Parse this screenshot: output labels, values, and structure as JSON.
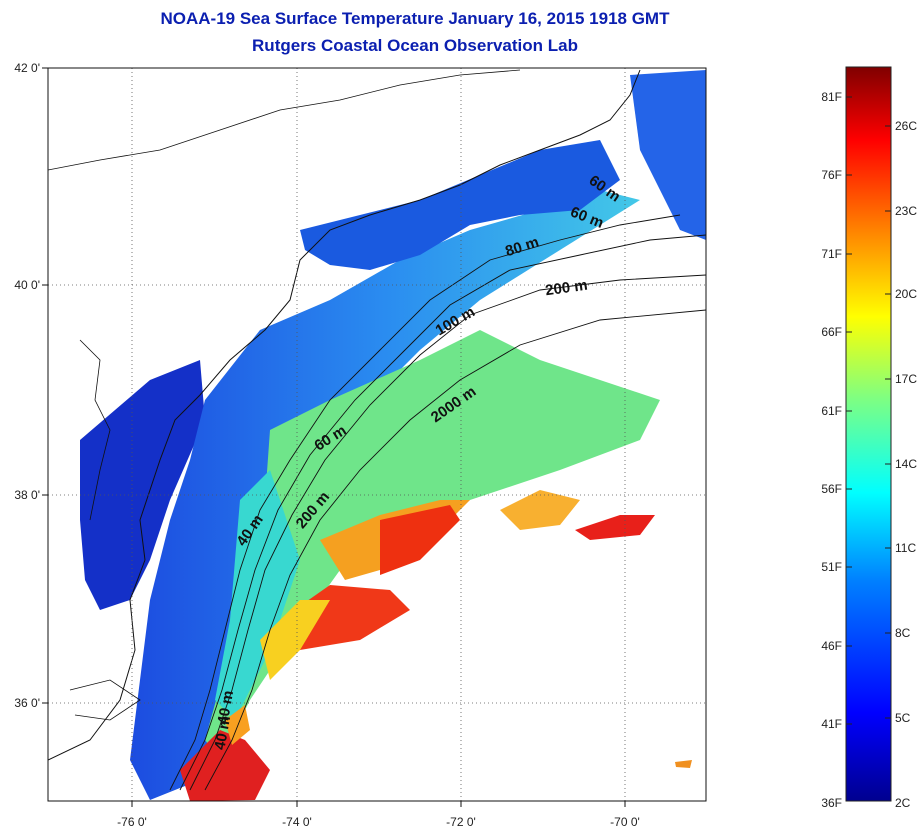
{
  "title": {
    "line1": "NOAA-19 Sea Surface Temperature January 16, 2015 1918 GMT",
    "line2": "Rutgers Coastal Ocean Observation Lab"
  },
  "map": {
    "lat_ticks": [
      "42 0'",
      "40 0'",
      "38 0'",
      "36 0'"
    ],
    "lon_ticks": [
      "-76 0'",
      "-74 0'",
      "-72 0'",
      "-70 0'"
    ],
    "grid": true,
    "contour_labels": [
      "60 m",
      "60 m",
      "80 m",
      "200 m",
      "100 m",
      "2000 m",
      "60 m",
      "40 m",
      "200 m",
      "40 m",
      "40 m"
    ]
  },
  "colorbar": {
    "fahrenheit_labels": [
      "81F",
      "76F",
      "71F",
      "66F",
      "61F",
      "56F",
      "51F",
      "46F",
      "41F",
      "36F"
    ],
    "celsius_labels": [
      "26C",
      "23C",
      "20C",
      "17C",
      "14C",
      "11C",
      "8C",
      "5C",
      "2C"
    ],
    "colors": [
      "#00008f",
      "#0000ff",
      "#0080ff",
      "#00ffff",
      "#80ff80",
      "#ffff00",
      "#ff8000",
      "#ff0000",
      "#800000"
    ]
  }
}
